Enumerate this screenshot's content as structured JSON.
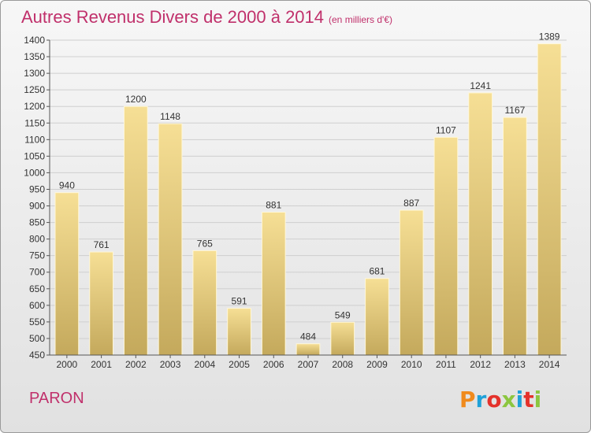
{
  "header": {
    "title": "Autres Revenus Divers de 2000 à 2014",
    "subtitle": "(en milliers d'€)"
  },
  "footer": {
    "commune": "PARON",
    "logo_text": "Proxiti",
    "logo_colors": [
      "#f08a1c",
      "#1fa1d8",
      "#e4322b",
      "#8cc63f",
      "#1fa1d8",
      "#e4322b",
      "#8cc63f"
    ]
  },
  "colors": {
    "accent": "#c0306b",
    "bar_top": "#f6df95",
    "bar_bottom": "#c4a95c",
    "grid": "#cfcfcf"
  },
  "chart_data": {
    "type": "bar",
    "title": "Autres Revenus Divers de 2000 à 2014",
    "subtitle": "(en milliers d'€)",
    "categories": [
      "2000",
      "2001",
      "2002",
      "2003",
      "2004",
      "2005",
      "2006",
      "2007",
      "2008",
      "2009",
      "2010",
      "2011",
      "2012",
      "2013",
      "2014"
    ],
    "values": [
      940,
      761,
      1200,
      1148,
      765,
      591,
      881,
      484,
      549,
      681,
      887,
      1107,
      1241,
      1167,
      1389
    ],
    "ylim": [
      450,
      1400
    ],
    "yticks": [
      450,
      500,
      550,
      600,
      650,
      700,
      750,
      800,
      850,
      900,
      950,
      1000,
      1050,
      1100,
      1150,
      1200,
      1250,
      1300,
      1350,
      1400
    ],
    "grid": true,
    "data_labels": true
  }
}
